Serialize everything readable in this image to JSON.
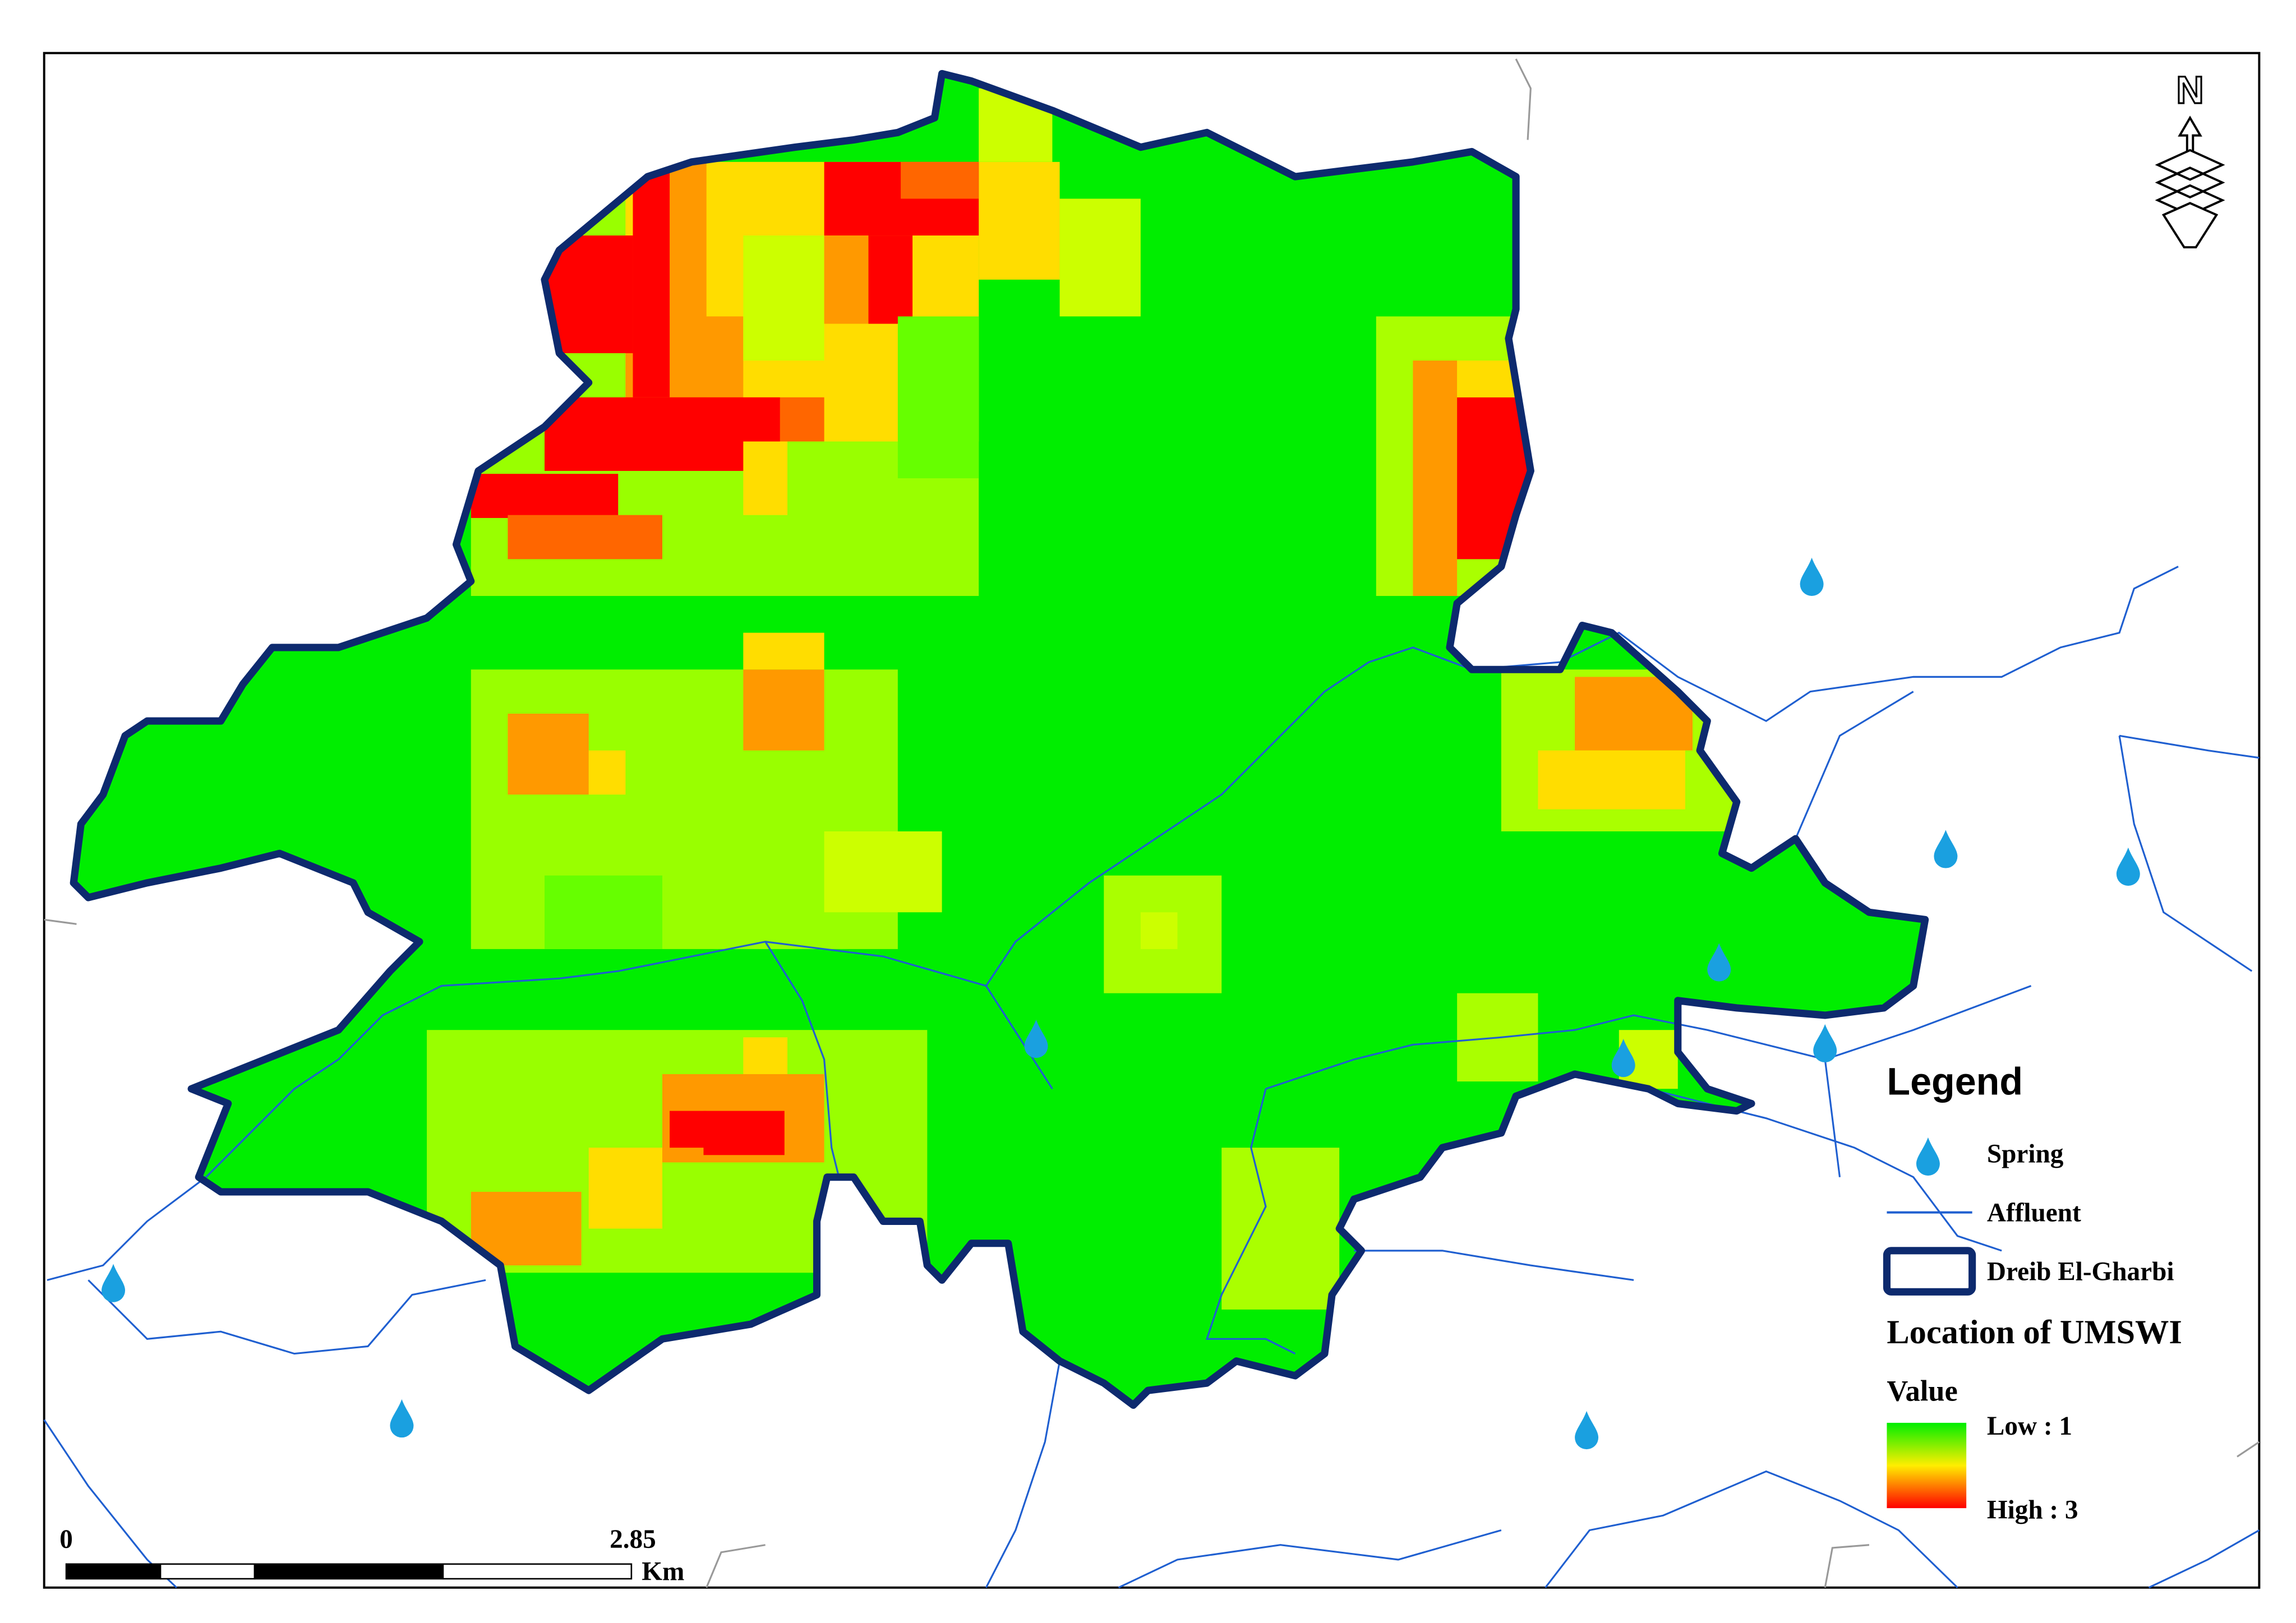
{
  "map": {
    "north_arrow": "N",
    "legend": {
      "title": "Legend",
      "items": [
        "Spring",
        "Affluent",
        "Dreib El-Gharbi"
      ],
      "layer": "Location of UMSWI",
      "field": "Value",
      "low": "Low : 1",
      "high": "High : 3"
    },
    "scale_bar": {
      "start": "0",
      "end": "2.85",
      "unit": "Km"
    }
  }
}
